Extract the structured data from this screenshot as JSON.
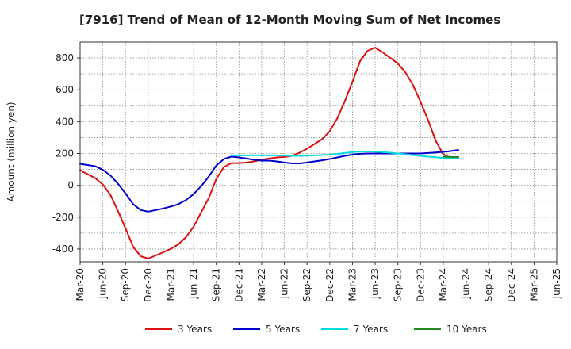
{
  "chart_data": {
    "type": "line",
    "title": "[7916]  Trend of Mean of 12-Month Moving Sum of Net Incomes",
    "ylabel": "Amount (million yen)",
    "xlabel": "",
    "ylim": [
      -480,
      900
    ],
    "yticks": [
      -400,
      -200,
      0,
      200,
      400,
      600,
      800
    ],
    "xticks": [
      "Mar-20",
      "Jun-20",
      "Sep-20",
      "Dec-20",
      "Mar-21",
      "Jun-21",
      "Sep-21",
      "Dec-21",
      "Mar-22",
      "Jun-22",
      "Sep-22",
      "Dec-22",
      "Mar-23",
      "Jun-23",
      "Sep-23",
      "Dec-23",
      "Mar-24",
      "Jun-24",
      "Sep-24",
      "Dec-24",
      "Mar-25",
      "Jun-25"
    ],
    "grid": true,
    "legend_position": "bottom",
    "series": [
      {
        "name": "3 Years",
        "color": "#dd1111",
        "points": [
          [
            0,
            95
          ],
          [
            1,
            70
          ],
          [
            2,
            45
          ],
          [
            3,
            5
          ],
          [
            4,
            -60
          ],
          [
            5,
            -160
          ],
          [
            6,
            -270
          ],
          [
            7,
            -385
          ],
          [
            8,
            -445
          ],
          [
            9,
            -460
          ],
          [
            10,
            -440
          ],
          [
            11,
            -420
          ],
          [
            12,
            -398
          ],
          [
            13,
            -370
          ],
          [
            14,
            -325
          ],
          [
            15,
            -260
          ],
          [
            16,
            -170
          ],
          [
            17,
            -80
          ],
          [
            18,
            40
          ],
          [
            19,
            115
          ],
          [
            20,
            140
          ],
          [
            21,
            140
          ],
          [
            22,
            143
          ],
          [
            23,
            150
          ],
          [
            24,
            160
          ],
          [
            25,
            168
          ],
          [
            26,
            175
          ],
          [
            27,
            178
          ],
          [
            28,
            185
          ],
          [
            29,
            205
          ],
          [
            30,
            230
          ],
          [
            31,
            260
          ],
          [
            32,
            290
          ],
          [
            33,
            340
          ],
          [
            34,
            420
          ],
          [
            35,
            530
          ],
          [
            36,
            650
          ],
          [
            37,
            780
          ],
          [
            38,
            845
          ],
          [
            39,
            865
          ],
          [
            40,
            835
          ],
          [
            41,
            800
          ],
          [
            42,
            765
          ],
          [
            43,
            710
          ],
          [
            44,
            630
          ],
          [
            45,
            525
          ],
          [
            46,
            410
          ],
          [
            47,
            280
          ],
          [
            48,
            195
          ],
          [
            49,
            172
          ],
          [
            50,
            172
          ]
        ]
      },
      {
        "name": "5 Years",
        "color": "#0000cc",
        "points": [
          [
            0,
            135
          ],
          [
            1,
            128
          ],
          [
            2,
            120
          ],
          [
            3,
            98
          ],
          [
            4,
            62
          ],
          [
            5,
            10
          ],
          [
            6,
            -50
          ],
          [
            7,
            -118
          ],
          [
            8,
            -155
          ],
          [
            9,
            -165
          ],
          [
            10,
            -155
          ],
          [
            11,
            -145
          ],
          [
            12,
            -133
          ],
          [
            13,
            -118
          ],
          [
            14,
            -92
          ],
          [
            15,
            -55
          ],
          [
            16,
            -5
          ],
          [
            17,
            55
          ],
          [
            18,
            125
          ],
          [
            19,
            165
          ],
          [
            20,
            180
          ],
          [
            21,
            175
          ],
          [
            22,
            168
          ],
          [
            23,
            160
          ],
          [
            24,
            155
          ],
          [
            25,
            155
          ],
          [
            26,
            150
          ],
          [
            27,
            143
          ],
          [
            28,
            138
          ],
          [
            29,
            138
          ],
          [
            30,
            143
          ],
          [
            31,
            150
          ],
          [
            32,
            157
          ],
          [
            33,
            165
          ],
          [
            34,
            175
          ],
          [
            35,
            185
          ],
          [
            36,
            193
          ],
          [
            37,
            198
          ],
          [
            38,
            200
          ],
          [
            39,
            200
          ],
          [
            40,
            200
          ],
          [
            41,
            200
          ],
          [
            42,
            200
          ],
          [
            43,
            200
          ],
          [
            44,
            200
          ],
          [
            45,
            200
          ],
          [
            46,
            203
          ],
          [
            47,
            206
          ],
          [
            48,
            210
          ],
          [
            49,
            215
          ],
          [
            50,
            222
          ]
        ]
      },
      {
        "name": "7 Years",
        "color": "#00dddd",
        "points": [
          [
            20,
            188
          ],
          [
            21,
            188
          ],
          [
            22,
            188
          ],
          [
            23,
            188
          ],
          [
            24,
            188
          ],
          [
            25,
            188
          ],
          [
            26,
            188
          ],
          [
            27,
            187
          ],
          [
            28,
            185
          ],
          [
            29,
            185
          ],
          [
            30,
            186
          ],
          [
            31,
            188
          ],
          [
            32,
            190
          ],
          [
            33,
            193
          ],
          [
            34,
            197
          ],
          [
            35,
            203
          ],
          [
            36,
            208
          ],
          [
            37,
            212
          ],
          [
            38,
            213
          ],
          [
            39,
            212
          ],
          [
            40,
            208
          ],
          [
            41,
            205
          ],
          [
            42,
            200
          ],
          [
            43,
            195
          ],
          [
            44,
            190
          ],
          [
            45,
            185
          ],
          [
            46,
            180
          ],
          [
            47,
            176
          ],
          [
            48,
            172
          ],
          [
            49,
            168
          ],
          [
            50,
            168
          ]
        ]
      },
      {
        "name": "10 Years",
        "color": "#228822",
        "points": [
          [
            48,
            180
          ],
          [
            49,
            178
          ],
          [
            50,
            178
          ]
        ]
      }
    ]
  }
}
